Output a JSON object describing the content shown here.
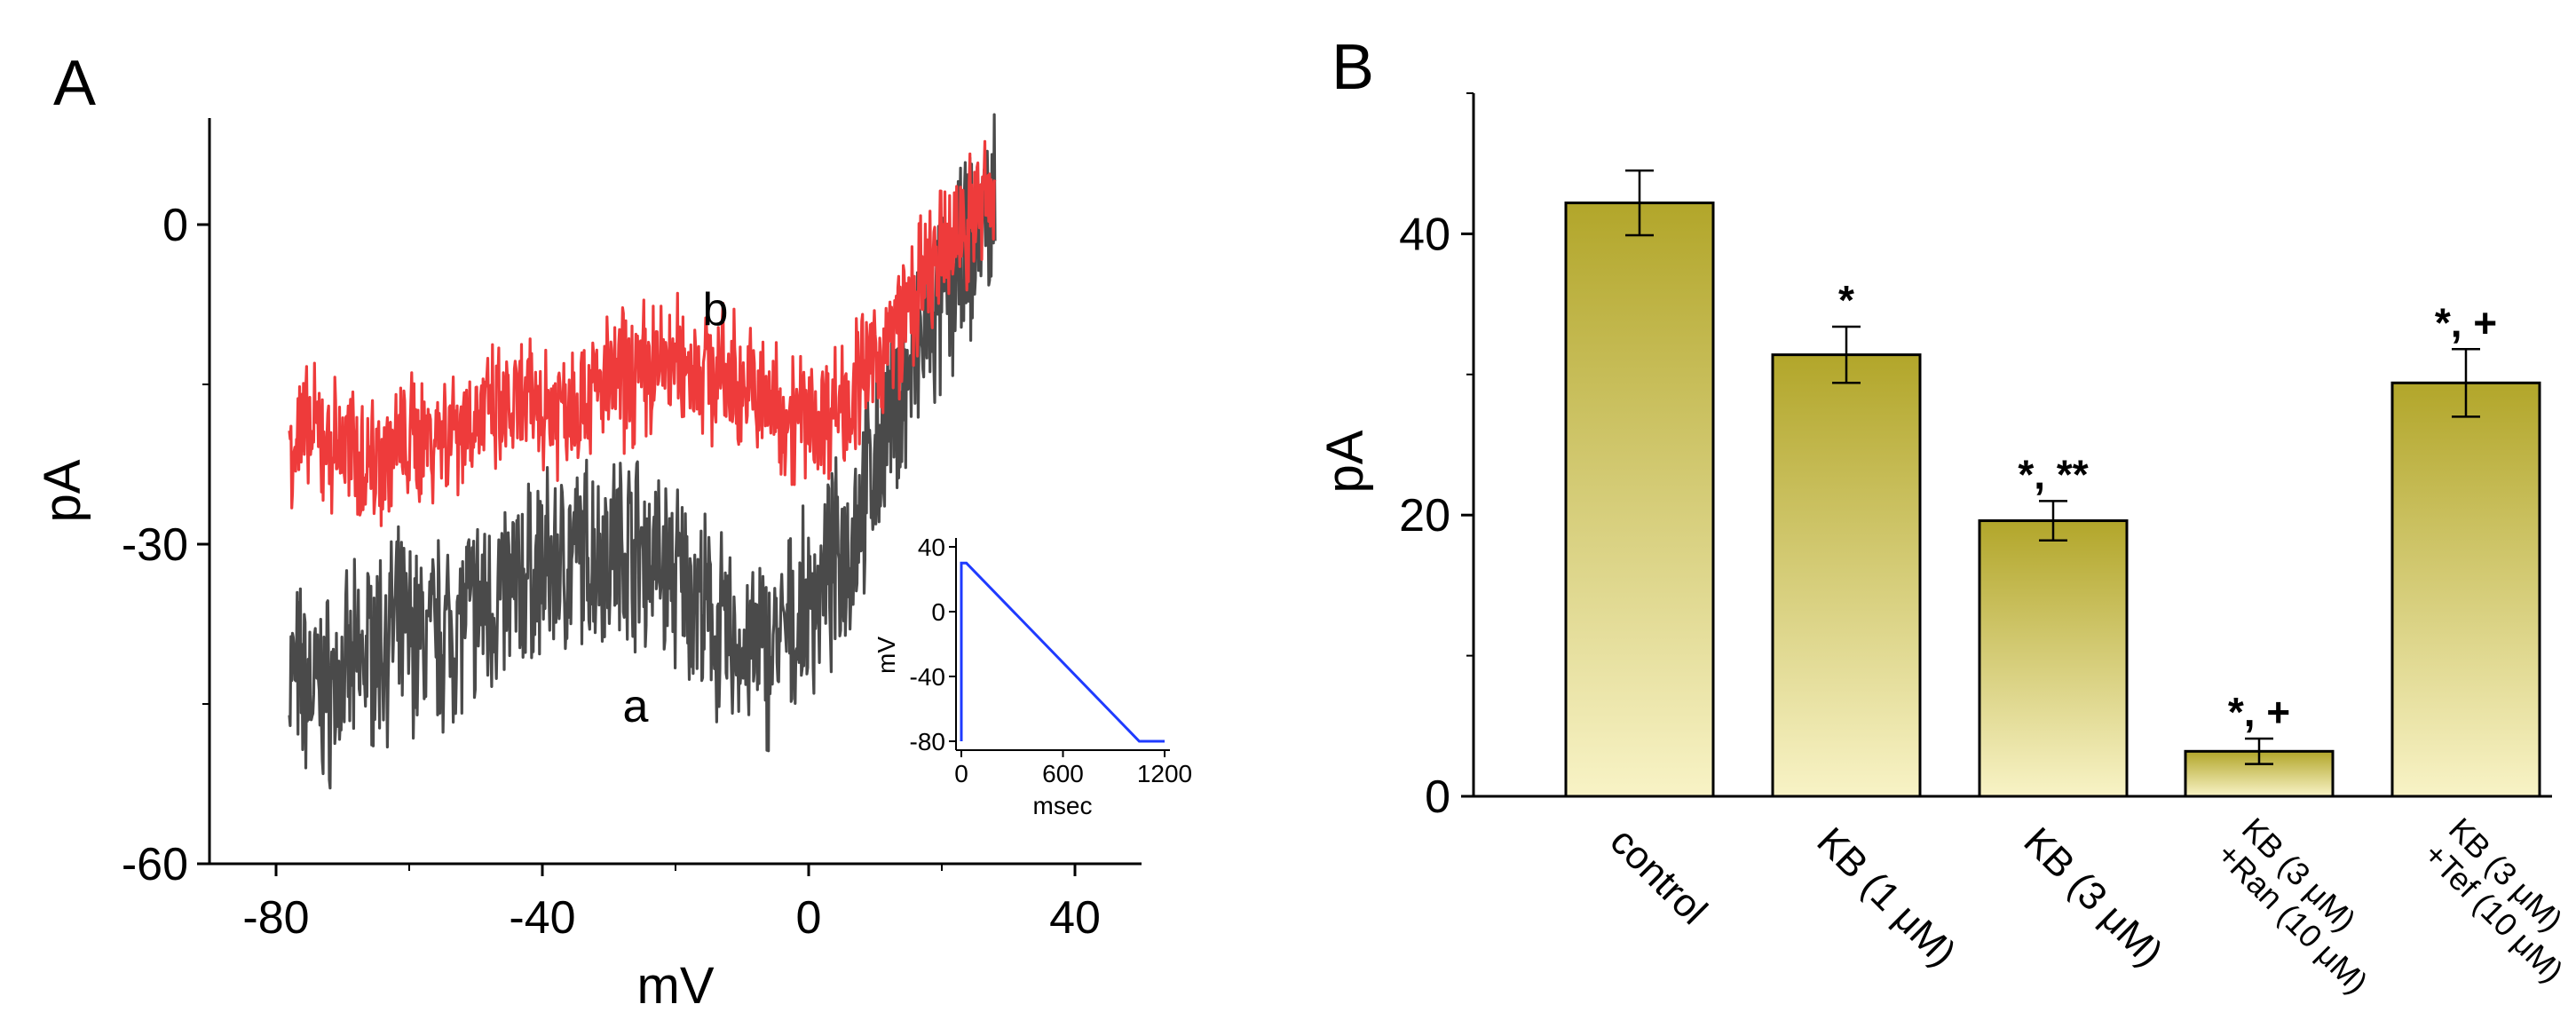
{
  "colors": {
    "trace_a": "#4a4a4a",
    "trace_b": "#ee3b3b",
    "inset_line": "#1f3bff",
    "bar_top": "#b2a62a",
    "bar_bottom": "#f8f3c6",
    "axis": "#000000"
  },
  "chart_data": [
    {
      "panel_label": "A",
      "type": "line",
      "xlabel": "mV",
      "ylabel": "pA",
      "xlim": [
        -90,
        50
      ],
      "ylim": [
        -60,
        10
      ],
      "xticks": [
        -80,
        -40,
        0,
        40
      ],
      "yticks": [
        0,
        -30,
        -60
      ],
      "xtick_labels": [
        "-80",
        "-40",
        "0",
        "40"
      ],
      "ytick_labels": [
        "0",
        "-30",
        "-60"
      ],
      "series": [
        {
          "name": "a",
          "label": "a",
          "x": [
            -78,
            -74,
            -70,
            -66,
            -62,
            -58,
            -54,
            -50,
            -46,
            -42,
            -38,
            -34,
            -30,
            -26,
            -22,
            -18,
            -14,
            -10,
            -6,
            -2,
            2,
            6,
            10,
            14,
            18,
            22,
            26,
            28
          ],
          "y": [
            -42,
            -44,
            -43,
            -40,
            -38,
            -39,
            -38,
            -36,
            -35,
            -33,
            -32,
            -31,
            -30,
            -30,
            -32,
            -34,
            -38,
            -40,
            -40,
            -38,
            -34,
            -30,
            -22,
            -16,
            -10,
            -5,
            0,
            2
          ]
        },
        {
          "name": "b",
          "label": "b",
          "x": [
            -78,
            -74,
            -70,
            -66,
            -62,
            -58,
            -54,
            -50,
            -46,
            -42,
            -38,
            -34,
            -30,
            -26,
            -22,
            -18,
            -14,
            -10,
            -6,
            -2,
            2,
            6,
            10,
            14,
            18,
            22,
            26,
            28
          ],
          "y": [
            -20,
            -20,
            -21,
            -22,
            -21,
            -20,
            -19,
            -18,
            -18,
            -17,
            -17,
            -16,
            -15,
            -14,
            -13,
            -13,
            -14,
            -15,
            -17,
            -18,
            -18,
            -16,
            -13,
            -9,
            -5,
            -1,
            2,
            3
          ]
        }
      ],
      "inset": {
        "type": "line",
        "xlabel": "msec",
        "ylabel": "mV",
        "xlim": [
          0,
          1200
        ],
        "ylim": [
          -80,
          40
        ],
        "xticks": [
          0,
          600,
          1200
        ],
        "yticks": [
          40,
          0,
          -40,
          -80
        ],
        "xtick_labels": [
          "0",
          "600",
          "1200"
        ],
        "ytick_labels": [
          "40",
          "0",
          "-40",
          "-80"
        ],
        "x": [
          0,
          0,
          20,
          30,
          1050,
          1200
        ],
        "y": [
          -80,
          30,
          30,
          30,
          -80,
          -80
        ]
      }
    },
    {
      "panel_label": "B",
      "type": "bar",
      "xlabel": "",
      "ylabel": "pA",
      "ylim": [
        0,
        50
      ],
      "yticks": [
        0,
        20,
        40
      ],
      "ytick_labels": [
        "0",
        "20",
        "40"
      ],
      "categories": [
        [
          "control"
        ],
        [
          "KB (1 μM)"
        ],
        [
          "KB (3 μM)"
        ],
        [
          "KB (3 μM)",
          "+Ran (10 μM)"
        ],
        [
          "KB (3 μM)",
          "+Tef (10 μM)"
        ]
      ],
      "values": [
        42.2,
        31.4,
        19.6,
        3.2,
        29.4
      ],
      "errors": [
        2.3,
        2.0,
        1.4,
        0.9,
        2.4
      ],
      "annotations": [
        "",
        "*",
        "*, **",
        "*, +",
        "*, +"
      ]
    }
  ]
}
